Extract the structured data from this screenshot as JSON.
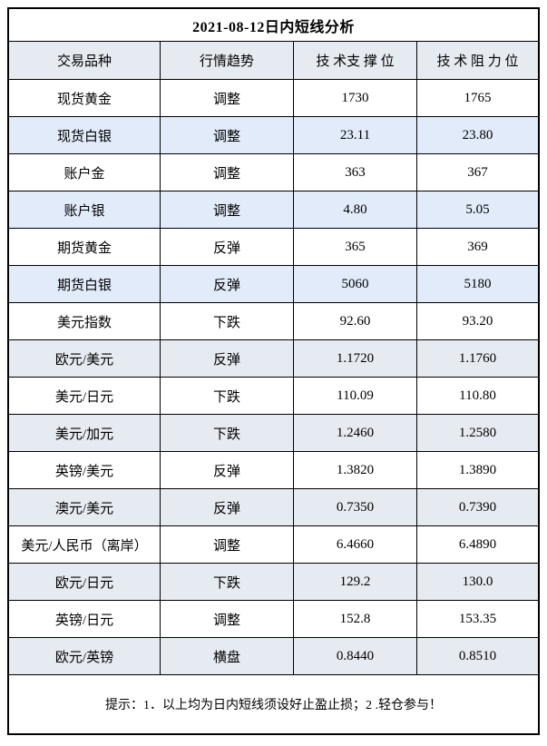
{
  "title": "2021-08-12日内短线分析",
  "columns": {
    "product": "交易品种",
    "trend": "行情趋势",
    "support": "技 术支 撑 位",
    "resistance": "技 术 阻 力 位"
  },
  "rows": [
    {
      "product": "现货黄金",
      "trend": "调整",
      "support": "1730",
      "resistance": "1765",
      "shade": "white"
    },
    {
      "product": "现货白银",
      "trend": "调整",
      "support": "23.11",
      "resistance": "23.80",
      "shade": "blue"
    },
    {
      "product": "账户金",
      "trend": "调整",
      "support": "363",
      "resistance": "367",
      "shade": "white"
    },
    {
      "product": "账户银",
      "trend": "调整",
      "support": "4.80",
      "resistance": "5.05",
      "shade": "blue"
    },
    {
      "product": "期货黄金",
      "trend": "反弹",
      "support": "365",
      "resistance": "369",
      "shade": "white"
    },
    {
      "product": "期货白银",
      "trend": "反弹",
      "support": "5060",
      "resistance": "5180",
      "shade": "blue"
    },
    {
      "product": "美元指数",
      "trend": "下跌",
      "support": "92.60",
      "resistance": "93.20",
      "shade": "white"
    },
    {
      "product": "欧元/美元",
      "trend": "反弹",
      "support": "1.1720",
      "resistance": "1.1760",
      "shade": "gray"
    },
    {
      "product": "美元/日元",
      "trend": "下跌",
      "support": "110.09",
      "resistance": "110.80",
      "shade": "white"
    },
    {
      "product": "美元/加元",
      "trend": "下跌",
      "support": "1.2460",
      "resistance": "1.2580",
      "shade": "gray"
    },
    {
      "product": "英镑/美元",
      "trend": "反弹",
      "support": "1.3820",
      "resistance": "1.3890",
      "shade": "white"
    },
    {
      "product": "澳元/美元",
      "trend": "反弹",
      "support": "0.7350",
      "resistance": "0.7390",
      "shade": "gray"
    },
    {
      "product": "美元/人民币（离岸）",
      "trend": "调整",
      "support": "6.4660",
      "resistance": "6.4890",
      "shade": "white"
    },
    {
      "product": "欧元/日元",
      "trend": "下跌",
      "support": "129.2",
      "resistance": "130.0",
      "shade": "gray"
    },
    {
      "product": "英镑/日元",
      "trend": "调整",
      "support": "152.8",
      "resistance": "153.35",
      "shade": "white"
    },
    {
      "product": "欧元/英镑",
      "trend": "横盘",
      "support": "0.8440",
      "resistance": "0.8510",
      "shade": "gray"
    }
  ],
  "footer": "提示：1．以上均为日内短线须设好止盈止损；2 .轻仓参与！",
  "colors": {
    "row_blue": "#e1ebfa",
    "row_gray": "#e6eaf1",
    "header_bg": "#e6eaf1",
    "border": "#000000"
  }
}
